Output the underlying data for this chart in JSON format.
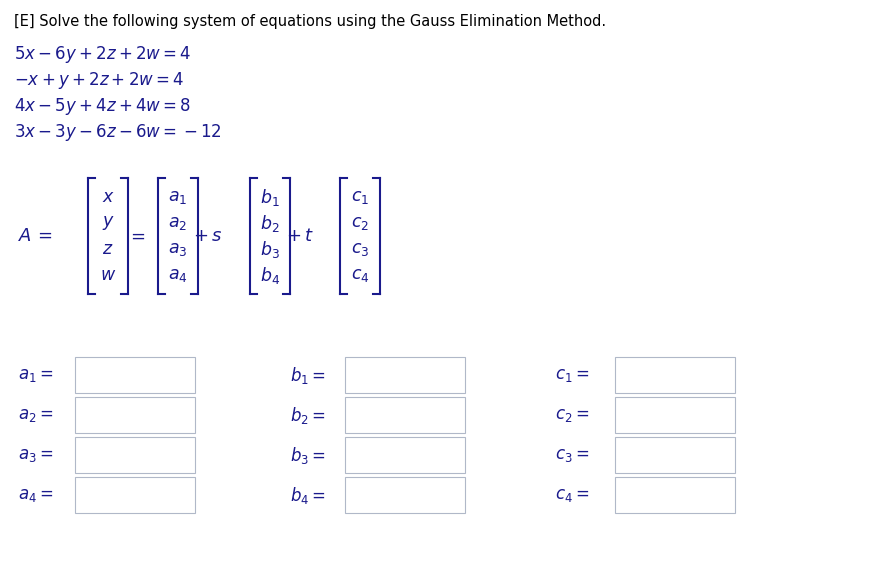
{
  "title": "[E] Solve the following system of equations using the Gauss Elimination Method.",
  "eq_latex": [
    "$5x - 6y + 2z + 2w = 4$",
    "$-x + y + 2z + 2w = 4$",
    "$4x - 5y + 4z + 4w = 8$",
    "$3x - 3y - 6z - 6w = -12$"
  ],
  "text_color": "#1a1a8c",
  "title_color": "#000000",
  "bg_color": "#ffffff",
  "box_edge_color": "#b0b8c8",
  "figsize": [
    8.94,
    5.85
  ],
  "dpi": 100
}
